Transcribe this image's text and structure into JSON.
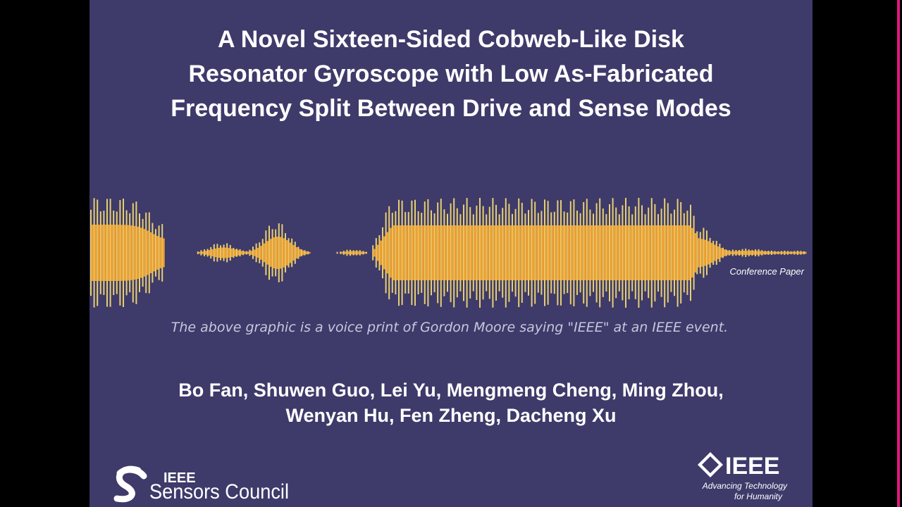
{
  "slide": {
    "title": [
      "A Novel Sixteen-Sided Cobweb-Like Disk",
      "Resonator Gyroscope with Low As-Fabricated",
      "Frequency Split Between Drive and Sense Modes"
    ],
    "paper_type": "Conference Paper",
    "caption": "The above graphic is a voice print of Gordon Moore saying \"IEEE\" at an IEEE event.",
    "authors": [
      "Bo Fan, Shuwen Guo, Lei Yu, Mengmeng Cheng, Ming Zhou,",
      "Wenyan Hu, Fen Zheng, Dacheng Xu"
    ],
    "left_logo": {
      "top": "IEEE",
      "bottom": "Sensors Council"
    },
    "right_logo": {
      "name": "IEEE",
      "tagline": [
        "Advancing Technology",
        "for Humanity"
      ]
    }
  }
}
